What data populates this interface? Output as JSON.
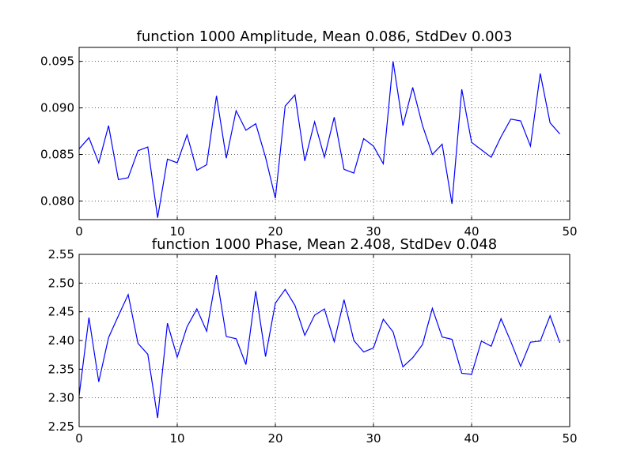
{
  "chart_data": [
    {
      "type": "line",
      "title": "function 1000 Amplitude, Mean 0.086, StdDev 0.003",
      "xlabel": "",
      "ylabel": "",
      "xlim": [
        0,
        50
      ],
      "ylim": [
        0.078,
        0.0965
      ],
      "xticks": [
        "0",
        "10",
        "20",
        "30",
        "40",
        "50"
      ],
      "yticks": [
        "0.080",
        "0.085",
        "0.090",
        "0.095"
      ],
      "grid": true,
      "color": "#0000ff",
      "x": [
        0,
        1,
        2,
        3,
        4,
        5,
        6,
        7,
        8,
        9,
        10,
        11,
        12,
        13,
        14,
        15,
        16,
        17,
        18,
        19,
        20,
        21,
        22,
        23,
        24,
        25,
        26,
        27,
        28,
        29,
        30,
        31,
        32,
        33,
        34,
        35,
        36,
        37,
        38,
        39,
        40,
        41,
        42,
        43,
        44,
        45,
        46,
        47,
        48,
        49
      ],
      "values": [
        0.0856,
        0.0868,
        0.0841,
        0.0881,
        0.0823,
        0.0825,
        0.0854,
        0.0858,
        0.0782,
        0.0845,
        0.0841,
        0.0871,
        0.0833,
        0.0839,
        0.0913,
        0.0846,
        0.0897,
        0.0876,
        0.0883,
        0.0847,
        0.0803,
        0.0902,
        0.0914,
        0.0843,
        0.0885,
        0.0847,
        0.089,
        0.0834,
        0.083,
        0.0867,
        0.0859,
        0.084,
        0.095,
        0.0881,
        0.0922,
        0.0881,
        0.085,
        0.0861,
        0.0797,
        0.092,
        0.0863,
        0.0855,
        0.0847,
        0.0869,
        0.0888,
        0.0886,
        0.0859,
        0.0937,
        0.0884,
        0.0872
      ]
    },
    {
      "type": "line",
      "title": "function 1000 Phase, Mean 2.408, StdDev 0.048",
      "xlabel": "",
      "ylabel": "",
      "xlim": [
        0,
        50
      ],
      "ylim": [
        2.25,
        2.55
      ],
      "xticks": [
        "0",
        "10",
        "20",
        "30",
        "40",
        "50"
      ],
      "yticks": [
        "2.25",
        "2.30",
        "2.35",
        "2.40",
        "2.45",
        "2.50",
        "2.55"
      ],
      "grid": true,
      "color": "#0000ff",
      "x": [
        0,
        1,
        2,
        3,
        4,
        5,
        6,
        7,
        8,
        9,
        10,
        11,
        12,
        13,
        14,
        15,
        16,
        17,
        18,
        19,
        20,
        21,
        22,
        23,
        24,
        25,
        26,
        27,
        28,
        29,
        30,
        31,
        32,
        33,
        34,
        35,
        36,
        37,
        38,
        39,
        40,
        41,
        42,
        43,
        44,
        45,
        46,
        47,
        48,
        49
      ],
      "values": [
        2.304,
        2.44,
        2.328,
        2.405,
        2.443,
        2.48,
        2.395,
        2.376,
        2.265,
        2.43,
        2.371,
        2.424,
        2.455,
        2.416,
        2.514,
        2.407,
        2.403,
        2.358,
        2.486,
        2.372,
        2.465,
        2.489,
        2.461,
        2.409,
        2.444,
        2.455,
        2.398,
        2.471,
        2.4,
        2.38,
        2.387,
        2.437,
        2.415,
        2.354,
        2.37,
        2.393,
        2.456,
        2.406,
        2.402,
        2.343,
        2.341,
        2.399,
        2.39,
        2.438,
        2.398,
        2.355,
        2.397,
        2.399,
        2.443,
        2.396
      ]
    }
  ]
}
